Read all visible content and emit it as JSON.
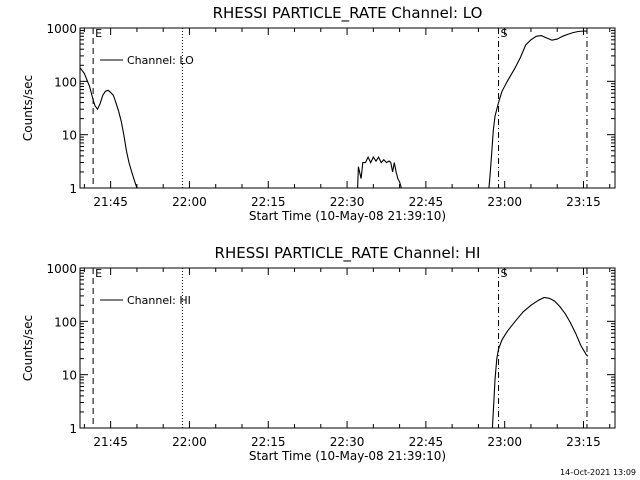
{
  "footer": {
    "timestamp": "14-Oct-2021 13:09"
  },
  "chart_data": [
    {
      "type": "line",
      "title": "RHESSI PARTICLE_RATE Channel: LO",
      "xlabel": "Start Time (10-May-08 21:39:10)",
      "ylabel": "Counts/sec",
      "yscale": "log",
      "ylim": [
        1,
        1000
      ],
      "xlim": [
        "21:39:10",
        "23:21:00"
      ],
      "xticks": [
        "21:45",
        "22:00",
        "22:15",
        "22:30",
        "22:45",
        "23:00",
        "23:15"
      ],
      "yticks": [
        "1",
        "10",
        "100",
        "1000"
      ],
      "legend": {
        "label": "Channel: LO",
        "position": "top-left"
      },
      "markers": [
        {
          "time": "21:41:40",
          "style": "dashed",
          "label": "E"
        },
        {
          "time": "21:58:40",
          "style": "dotted",
          "label": ""
        },
        {
          "time": "22:58:50",
          "style": "dash-dot",
          "label": "S"
        },
        {
          "time": "23:15:40",
          "style": "dash-dot",
          "label": ""
        }
      ],
      "series": [
        {
          "name": "Channel: LO",
          "segments": [
            [
              [
                "21:39:10",
                180
              ],
              [
                "21:40:00",
                140
              ],
              [
                "21:41:00",
                80
              ],
              [
                "21:41:40",
                45
              ],
              [
                "21:42:00",
                35
              ],
              [
                "21:42:30",
                30
              ],
              [
                "21:43:00",
                38
              ],
              [
                "21:43:30",
                55
              ],
              [
                "21:44:00",
                65
              ],
              [
                "21:44:30",
                68
              ],
              [
                "21:45:00",
                62
              ],
              [
                "21:45:30",
                55
              ],
              [
                "21:46:00",
                40
              ],
              [
                "21:46:30",
                28
              ],
              [
                "21:47:00",
                18
              ],
              [
                "21:47:30",
                10
              ],
              [
                "21:48:00",
                5
              ],
              [
                "21:48:30",
                3
              ],
              [
                "21:49:00",
                2
              ],
              [
                "21:49:30",
                1.4
              ],
              [
                "21:50:00",
                1
              ]
            ],
            [
              [
                "22:32:00",
                1
              ],
              [
                "22:32:10",
                2.5
              ],
              [
                "22:32:40",
                1.5
              ],
              [
                "22:33:00",
                3
              ],
              [
                "22:33:30",
                3
              ],
              [
                "22:34:00",
                3.8
              ],
              [
                "22:34:30",
                3
              ],
              [
                "22:35:00",
                3.8
              ],
              [
                "22:35:30",
                3.2
              ],
              [
                "22:36:00",
                3.8
              ],
              [
                "22:36:30",
                3
              ],
              [
                "22:37:00",
                3.4
              ],
              [
                "22:37:30",
                3
              ],
              [
                "22:38:00",
                3.2
              ],
              [
                "22:38:20",
                3
              ],
              [
                "22:38:40",
                2
              ],
              [
                "22:39:00",
                3
              ],
              [
                "22:39:20",
                2
              ],
              [
                "22:39:40",
                1.5
              ],
              [
                "22:40:00",
                1.3
              ],
              [
                "22:40:20",
                1
              ]
            ],
            [
              [
                "22:57:00",
                1
              ],
              [
                "22:57:10",
                1.5
              ],
              [
                "22:57:30",
                4
              ],
              [
                "22:57:50",
                12
              ],
              [
                "22:58:10",
                22
              ],
              [
                "22:58:30",
                30
              ],
              [
                "22:58:50",
                40
              ],
              [
                "22:59:30",
                65
              ],
              [
                "23:00:30",
                100
              ],
              [
                "23:02:00",
                180
              ],
              [
                "23:03:00",
                280
              ],
              [
                "23:04:00",
                480
              ],
              [
                "23:05:00",
                600
              ],
              [
                "23:06:00",
                700
              ],
              [
                "23:07:00",
                720
              ],
              [
                "23:08:00",
                650
              ],
              [
                "23:09:00",
                590
              ],
              [
                "23:10:00",
                620
              ],
              [
                "23:11:00",
                700
              ],
              [
                "23:12:00",
                760
              ],
              [
                "23:13:00",
                820
              ],
              [
                "23:14:00",
                860
              ],
              [
                "23:15:00",
                880
              ],
              [
                "23:15:40",
                870
              ]
            ]
          ]
        }
      ]
    },
    {
      "type": "line",
      "title": "RHESSI PARTICLE_RATE Channel: HI",
      "xlabel": "Start Time (10-May-08 21:39:10)",
      "ylabel": "Counts/sec",
      "yscale": "log",
      "ylim": [
        1,
        1000
      ],
      "xlim": [
        "21:39:10",
        "23:21:00"
      ],
      "xticks": [
        "21:45",
        "22:00",
        "22:15",
        "22:30",
        "22:45",
        "23:00",
        "23:15"
      ],
      "yticks": [
        "1",
        "10",
        "100",
        "1000"
      ],
      "legend": {
        "label": "Channel: HI",
        "position": "top-left"
      },
      "markers": [
        {
          "time": "21:41:40",
          "style": "dashed",
          "label": "E"
        },
        {
          "time": "21:58:40",
          "style": "dotted",
          "label": ""
        },
        {
          "time": "22:58:50",
          "style": "dash-dot",
          "label": "S"
        },
        {
          "time": "23:15:40",
          "style": "dash-dot",
          "label": ""
        }
      ],
      "series": [
        {
          "name": "Channel: HI",
          "segments": [
            [
              [
                "22:57:40",
                1
              ],
              [
                "22:57:50",
                2
              ],
              [
                "22:58:10",
                8
              ],
              [
                "22:58:30",
                20
              ],
              [
                "22:58:50",
                30
              ],
              [
                "22:59:30",
                45
              ],
              [
                "23:00:30",
                65
              ],
              [
                "23:02:00",
                100
              ],
              [
                "23:03:30",
                150
              ],
              [
                "23:05:00",
                200
              ],
              [
                "23:06:30",
                250
              ],
              [
                "23:07:30",
                280
              ],
              [
                "23:08:30",
                270
              ],
              [
                "23:09:30",
                240
              ],
              [
                "23:10:30",
                190
              ],
              [
                "23:11:30",
                140
              ],
              [
                "23:12:30",
                95
              ],
              [
                "23:13:30",
                60
              ],
              [
                "23:14:30",
                35
              ],
              [
                "23:15:30",
                24
              ],
              [
                "23:15:50",
                22
              ]
            ]
          ]
        }
      ]
    }
  ]
}
